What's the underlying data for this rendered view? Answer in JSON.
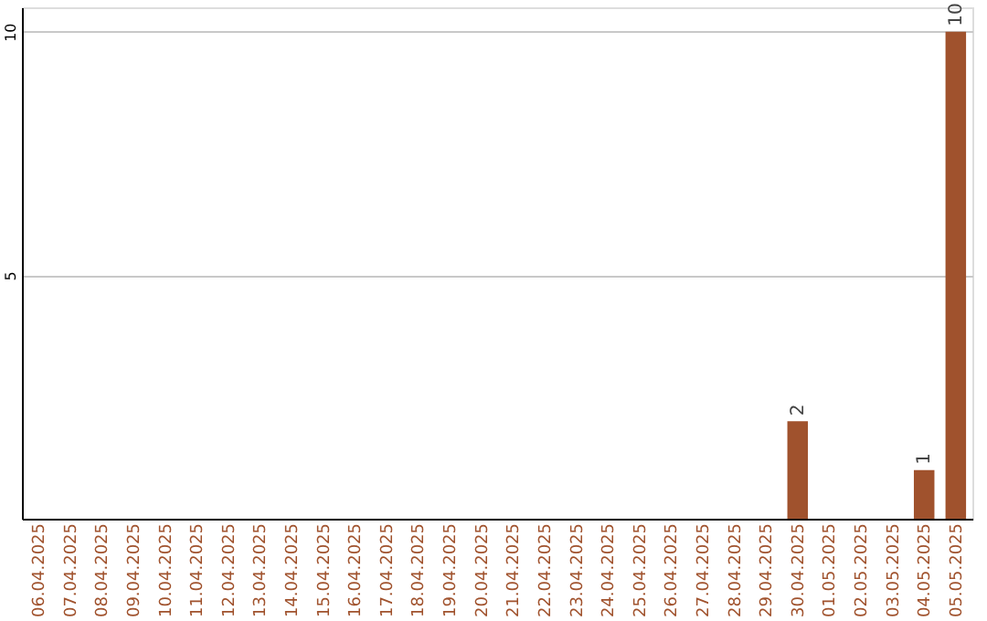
{
  "chart_data": {
    "type": "bar",
    "categories": [
      "06.04.2025",
      "07.04.2025",
      "08.04.2025",
      "09.04.2025",
      "10.04.2025",
      "11.04.2025",
      "12.04.2025",
      "13.04.2025",
      "14.04.2025",
      "15.04.2025",
      "16.04.2025",
      "17.04.2025",
      "18.04.2025",
      "19.04.2025",
      "20.04.2025",
      "21.04.2025",
      "22.04.2025",
      "23.04.2025",
      "24.04.2025",
      "25.04.2025",
      "26.04.2025",
      "27.04.2025",
      "28.04.2025",
      "29.04.2025",
      "30.04.2025",
      "01.05.2025",
      "02.05.2025",
      "03.05.2025",
      "04.05.2025",
      "05.05.2025"
    ],
    "values": [
      0,
      0,
      0,
      0,
      0,
      0,
      0,
      0,
      0,
      0,
      0,
      0,
      0,
      0,
      0,
      0,
      0,
      0,
      0,
      0,
      0,
      0,
      0,
      0,
      2,
      0,
      0,
      0,
      1,
      10
    ],
    "value_labels": [
      null,
      null,
      null,
      null,
      null,
      null,
      null,
      null,
      null,
      null,
      null,
      null,
      null,
      null,
      null,
      null,
      null,
      null,
      null,
      null,
      null,
      null,
      null,
      null,
      "2",
      null,
      null,
      null,
      "1",
      "10"
    ],
    "color": "#a0522d",
    "ylim": [
      0,
      10.5
    ],
    "yticks": [
      5,
      10
    ],
    "grid": "y"
  }
}
